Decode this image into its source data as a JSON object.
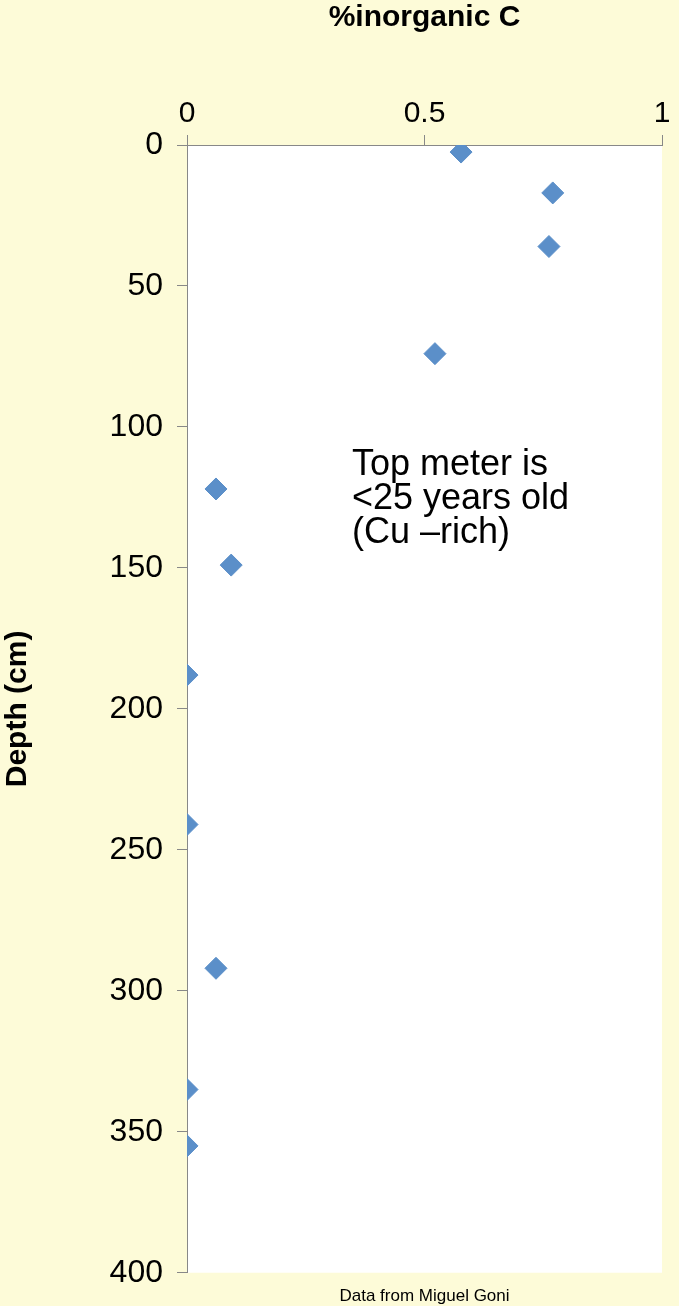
{
  "chart_data": {
    "type": "scatter",
    "xlabel": "%inorganic C",
    "ylabel": "Depth (cm)",
    "x": [
      0.577,
      0.77,
      0.762,
      0.522,
      0.061,
      0.093,
      0,
      0,
      0.061,
      0,
      0
    ],
    "values": [
      2.5,
      17,
      36,
      74,
      122,
      149,
      188,
      241,
      292,
      335,
      355
    ],
    "color": "#5b8fc9",
    "marker": "diamond",
    "xlim": [
      0,
      1
    ],
    "xticks": [
      0,
      0.5,
      1
    ],
    "ylim": [
      400,
      0
    ],
    "yticks": [
      0,
      50,
      100,
      150,
      200,
      250,
      300,
      350,
      400
    ],
    "grid": false,
    "legend": false,
    "annotations": [
      "Top meter is\n<25 years old\n(Cu –rich)",
      "Data from Miguel Goni"
    ]
  }
}
